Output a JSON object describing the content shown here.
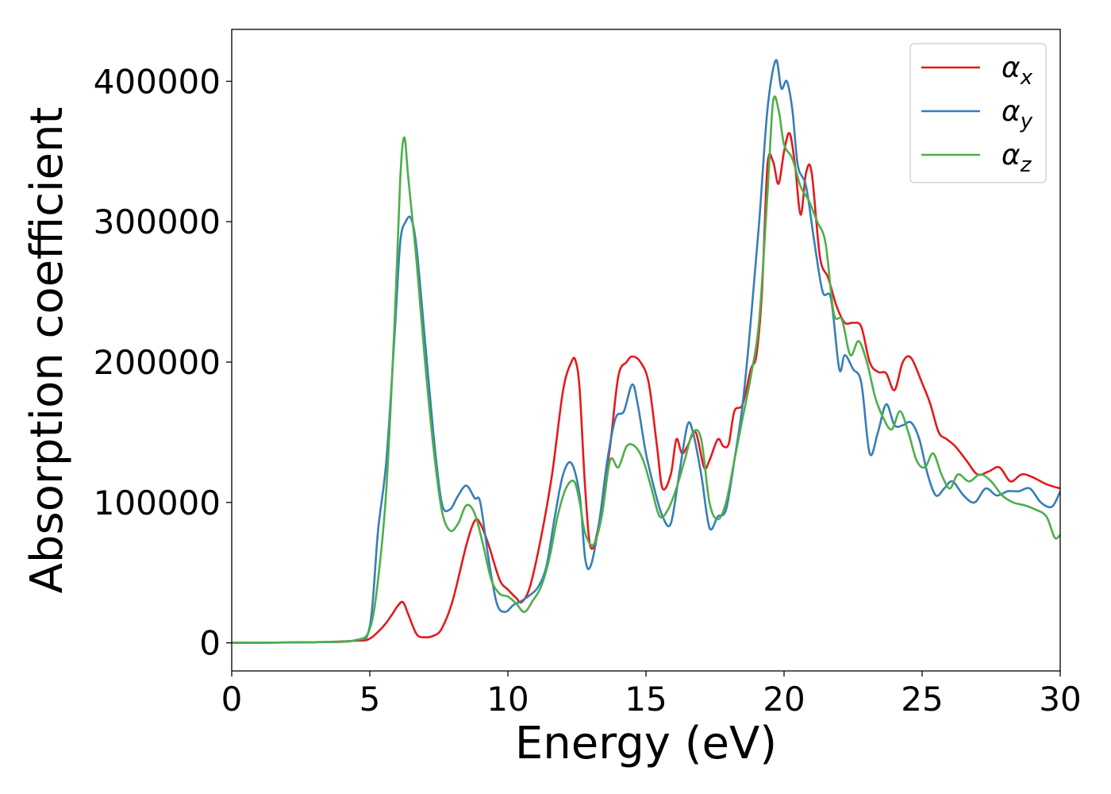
{
  "chart_data": {
    "type": "line",
    "title": "",
    "xlabel": "Energy (eV)",
    "ylabel": "Absorption coefficient",
    "xlim": [
      0,
      30
    ],
    "ylim": [
      -20000,
      437000
    ],
    "xticks": [
      0,
      5,
      10,
      15,
      20,
      25,
      30
    ],
    "xtick_labels": [
      "0",
      "5",
      "10",
      "15",
      "20",
      "25",
      "30"
    ],
    "yticks": [
      0,
      100000,
      200000,
      300000,
      400000
    ],
    "ytick_labels": [
      "0",
      "100000",
      "200000",
      "300000",
      "400000"
    ],
    "grid": false,
    "legend_position": "top-right",
    "series": [
      {
        "name": "αx",
        "name_base": "α",
        "name_sub": "x",
        "color": "#e41a1c",
        "x": [
          0,
          3,
          4.5,
          5,
          5.5,
          5.8,
          6.0,
          6.2,
          6.4,
          6.7,
          7.0,
          7.3,
          7.6,
          8.0,
          8.5,
          8.8,
          9.0,
          9.3,
          9.7,
          10.0,
          10.3,
          10.5,
          10.8,
          11.2,
          11.6,
          12.0,
          12.3,
          12.45,
          12.6,
          12.8,
          13.0,
          13.3,
          13.7,
          14.0,
          14.3,
          14.5,
          14.8,
          15.1,
          15.4,
          15.6,
          15.9,
          16.1,
          16.3,
          16.5,
          16.8,
          17.1,
          17.3,
          17.6,
          17.8,
          18.0,
          18.2,
          18.5,
          18.8,
          19.0,
          19.2,
          19.4,
          19.6,
          19.8,
          20.0,
          20.2,
          20.4,
          20.6,
          20.8,
          21.0,
          21.3,
          21.6,
          21.9,
          22.2,
          22.5,
          22.8,
          23.1,
          23.4,
          23.7,
          24.0,
          24.3,
          24.6,
          25.0,
          25.3,
          25.6,
          25.9,
          26.2,
          26.6,
          27.0,
          27.4,
          27.8,
          28.2,
          28.6,
          29.0,
          29.5,
          30.0
        ],
        "y": [
          0,
          500,
          1500,
          3000,
          12000,
          20000,
          26000,
          29000,
          20000,
          6000,
          4000,
          5000,
          10000,
          30000,
          70000,
          87000,
          85000,
          70000,
          45000,
          38000,
          32000,
          29000,
          40000,
          75000,
          120000,
          180000,
          200000,
          201000,
          180000,
          110000,
          68000,
          85000,
          140000,
          190000,
          200000,
          204000,
          200000,
          185000,
          140000,
          110000,
          120000,
          145000,
          135000,
          140000,
          150000,
          125000,
          130000,
          145000,
          140000,
          142000,
          165000,
          170000,
          195000,
          205000,
          250000,
          340000,
          343000,
          327000,
          350000,
          363000,
          340000,
          305000,
          335000,
          335000,
          275000,
          260000,
          240000,
          228000,
          228000,
          225000,
          200000,
          193000,
          192000,
          180000,
          200000,
          203000,
          185000,
          170000,
          150000,
          145000,
          140000,
          130000,
          120000,
          122000,
          125000,
          115000,
          120000,
          118000,
          113000,
          110000
        ]
      },
      {
        "name": "αy",
        "name_base": "α",
        "name_sub": "y",
        "color": "#377eb8",
        "x": [
          0,
          3,
          4.5,
          5,
          5.3,
          5.6,
          5.9,
          6.1,
          6.3,
          6.5,
          6.7,
          7.0,
          7.3,
          7.6,
          7.9,
          8.2,
          8.5,
          8.8,
          9.0,
          9.3,
          9.6,
          9.9,
          10.2,
          10.5,
          10.8,
          11.1,
          11.4,
          11.7,
          12.0,
          12.3,
          12.6,
          12.8,
          13.0,
          13.3,
          13.6,
          13.9,
          14.2,
          14.5,
          14.7,
          15.0,
          15.3,
          15.6,
          15.9,
          16.2,
          16.5,
          16.7,
          17.0,
          17.3,
          17.6,
          17.9,
          18.2,
          18.5,
          18.8,
          19.1,
          19.4,
          19.7,
          19.9,
          20.1,
          20.3,
          20.5,
          20.8,
          21.1,
          21.4,
          21.7,
          22.0,
          22.2,
          22.5,
          22.8,
          23.1,
          23.4,
          23.7,
          24.0,
          24.3,
          24.6,
          24.9,
          25.2,
          25.5,
          25.8,
          26.1,
          26.5,
          26.9,
          27.3,
          27.7,
          28.1,
          28.5,
          28.9,
          29.3,
          29.7,
          30.0
        ],
        "y": [
          0,
          500,
          2000,
          12000,
          80000,
          130000,
          220000,
          285000,
          300000,
          302000,
          280000,
          215000,
          150000,
          100000,
          95000,
          105000,
          112000,
          103000,
          100000,
          60000,
          28000,
          22000,
          27000,
          30000,
          34000,
          40000,
          55000,
          90000,
          120000,
          128000,
          105000,
          60000,
          55000,
          85000,
          130000,
          160000,
          165000,
          184000,
          170000,
          135000,
          110000,
          90000,
          85000,
          120000,
          155000,
          150000,
          120000,
          82000,
          90000,
          95000,
          130000,
          170000,
          230000,
          300000,
          380000,
          415000,
          395000,
          400000,
          380000,
          340000,
          325000,
          285000,
          250000,
          245000,
          195000,
          205000,
          195000,
          185000,
          135000,
          150000,
          170000,
          155000,
          155000,
          157000,
          145000,
          120000,
          105000,
          110000,
          115000,
          105000,
          100000,
          110000,
          105000,
          108000,
          108000,
          110000,
          100000,
          97000,
          108000
        ]
      },
      {
        "name": "αz",
        "name_base": "α",
        "name_sub": "z",
        "color": "#4daf4a",
        "x": [
          0,
          3,
          4.5,
          5,
          5.3,
          5.6,
          5.9,
          6.1,
          6.25,
          6.4,
          6.7,
          7.0,
          7.3,
          7.6,
          7.9,
          8.2,
          8.5,
          8.8,
          9.1,
          9.4,
          9.7,
          10.0,
          10.3,
          10.6,
          10.9,
          11.2,
          11.5,
          11.8,
          12.1,
          12.4,
          12.6,
          12.8,
          13.1,
          13.4,
          13.7,
          14.0,
          14.3,
          14.6,
          14.9,
          15.2,
          15.5,
          15.8,
          16.1,
          16.4,
          16.7,
          17.0,
          17.3,
          17.6,
          17.9,
          18.2,
          18.5,
          18.8,
          19.1,
          19.4,
          19.6,
          19.8,
          20.0,
          20.3,
          20.6,
          20.9,
          21.2,
          21.5,
          21.8,
          22.1,
          22.4,
          22.7,
          23.0,
          23.3,
          23.6,
          23.9,
          24.2,
          24.5,
          24.8,
          25.1,
          25.4,
          25.7,
          26.0,
          26.3,
          26.7,
          27.1,
          27.5,
          27.9,
          28.3,
          28.7,
          29.1,
          29.5,
          29.8,
          30.0
        ],
        "y": [
          0,
          500,
          2000,
          10000,
          45000,
          110000,
          230000,
          330000,
          360000,
          330000,
          270000,
          200000,
          140000,
          95000,
          80000,
          85000,
          98000,
          92000,
          70000,
          45000,
          35000,
          33000,
          28000,
          22000,
          30000,
          40000,
          60000,
          90000,
          110000,
          115000,
          100000,
          78000,
          70000,
          90000,
          130000,
          125000,
          140000,
          140000,
          130000,
          110000,
          90000,
          95000,
          110000,
          130000,
          150000,
          145000,
          100000,
          88000,
          100000,
          130000,
          160000,
          190000,
          230000,
          320000,
          385000,
          380000,
          355000,
          345000,
          325000,
          315000,
          300000,
          285000,
          235000,
          230000,
          205000,
          215000,
          200000,
          175000,
          160000,
          152000,
          165000,
          150000,
          130000,
          125000,
          135000,
          120000,
          110000,
          120000,
          115000,
          120000,
          115000,
          105000,
          100000,
          98000,
          95000,
          90000,
          75000,
          77000
        ]
      }
    ]
  }
}
